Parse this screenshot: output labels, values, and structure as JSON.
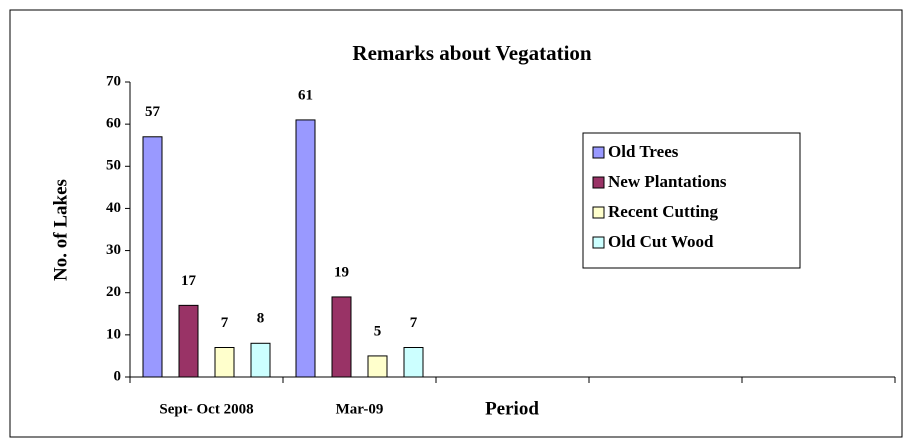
{
  "chart_data": {
    "type": "bar",
    "title": "Remarks about Vegatation",
    "x_label": "Period",
    "y_label": "No. of Lakes",
    "categories": [
      "Sept- Oct 2008",
      "Mar-09",
      null,
      null,
      null
    ],
    "series": [
      {
        "name": "Old Trees",
        "color": "#9999ff",
        "values": [
          57,
          61,
          null,
          null,
          null
        ]
      },
      {
        "name": "New Plantations",
        "color": "#993366",
        "values": [
          17,
          19,
          null,
          null,
          null
        ]
      },
      {
        "name": "Recent Cutting",
        "color": "#ffffcc",
        "values": [
          7,
          5,
          null,
          null,
          null
        ]
      },
      {
        "name": "Old Cut Wood",
        "color": "#ccffff",
        "values": [
          8,
          7,
          null,
          null,
          null
        ]
      }
    ],
    "ylim": [
      0,
      70
    ],
    "yticks": [
      0,
      10,
      20,
      30,
      40,
      50,
      60,
      70
    ],
    "grid": false,
    "legend": "right"
  }
}
